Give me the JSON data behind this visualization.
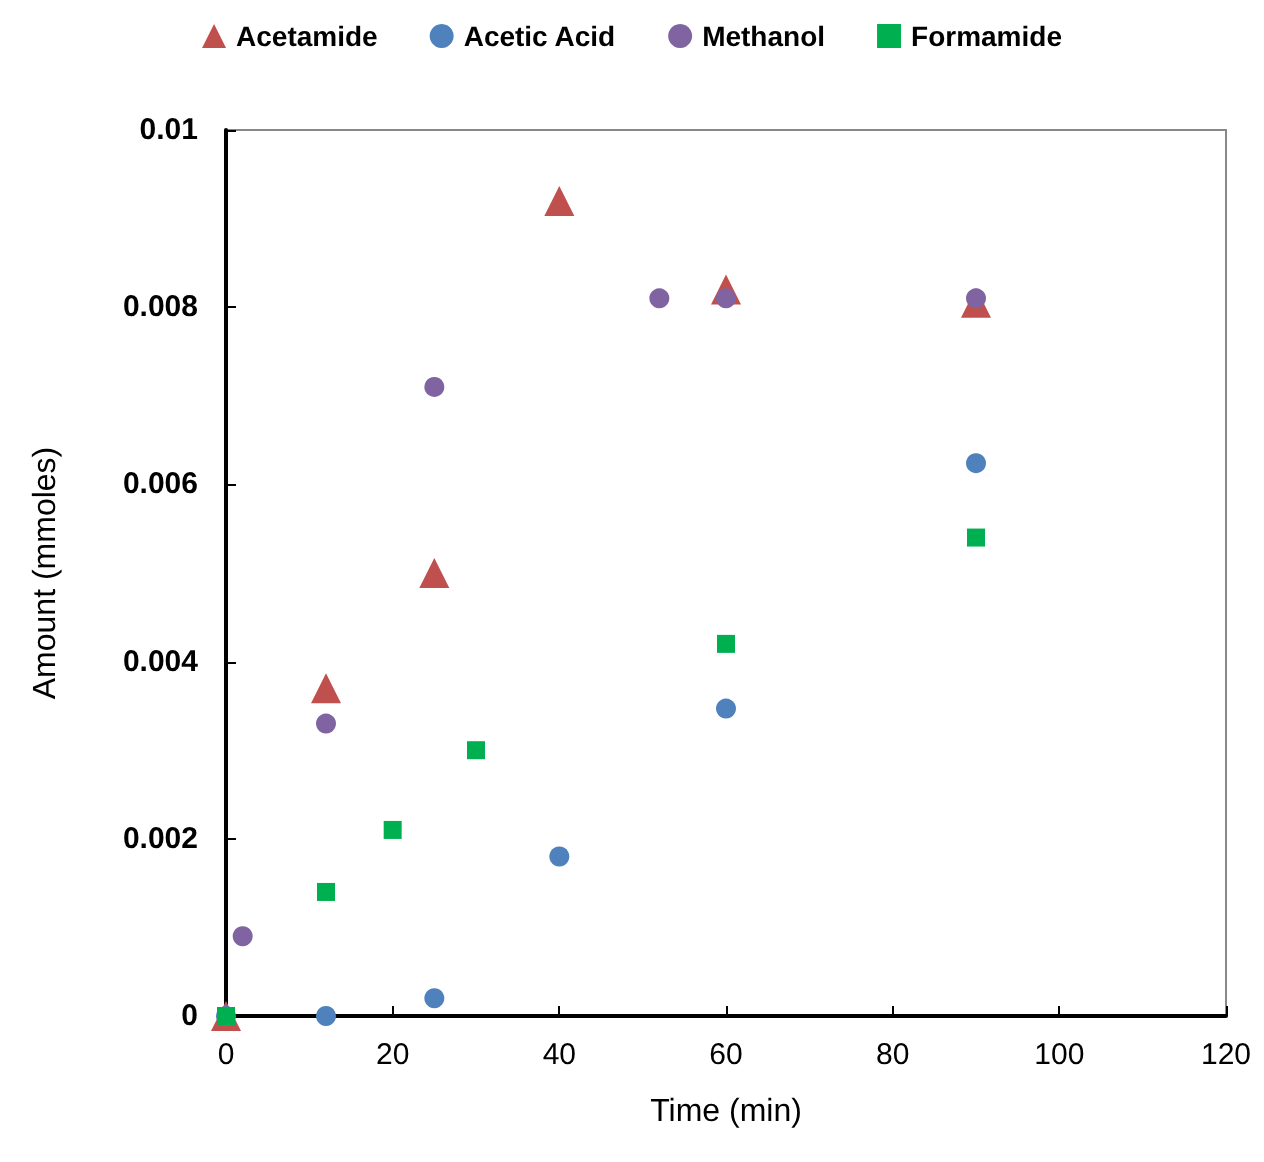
{
  "chart_data": {
    "type": "scatter",
    "xlabel": "Time (min)",
    "ylabel": "Amount (mmoles)",
    "xlim": [
      0,
      120
    ],
    "xticks": [
      0,
      20,
      40,
      60,
      80,
      100,
      120
    ],
    "ylim": [
      0,
      0.01
    ],
    "yticks": [
      0,
      0.002,
      0.004,
      0.006,
      0.008,
      0.01
    ],
    "grid": false,
    "legend": "top",
    "series": [
      {
        "name": "Acetamide",
        "color": "#c0504d",
        "marker": "triangle",
        "x": [
          0,
          12,
          25,
          40,
          60,
          90
        ],
        "values": [
          0,
          0.0037,
          0.005,
          0.0092,
          0.0082,
          0.00805
        ]
      },
      {
        "name": "Acetic Acid",
        "color": "#4f81bd",
        "marker": "circle",
        "x": [
          0,
          12,
          25,
          40,
          60,
          90
        ],
        "values": [
          0,
          0,
          0.0002,
          0.0018,
          0.00347,
          0.00624
        ]
      },
      {
        "name": "Methanol",
        "color": "#8064a2",
        "marker": "circle",
        "x": [
          2,
          12,
          25,
          52,
          60,
          90
        ],
        "values": [
          0.0009,
          0.0033,
          0.0071,
          0.0081,
          0.0081,
          0.0081
        ]
      },
      {
        "name": "Formamide",
        "color": "#00b050",
        "marker": "square",
        "x": [
          0,
          12,
          20,
          30,
          60,
          90
        ],
        "values": [
          0,
          0.0014,
          0.0021,
          0.003,
          0.0042,
          0.0054
        ]
      }
    ]
  }
}
